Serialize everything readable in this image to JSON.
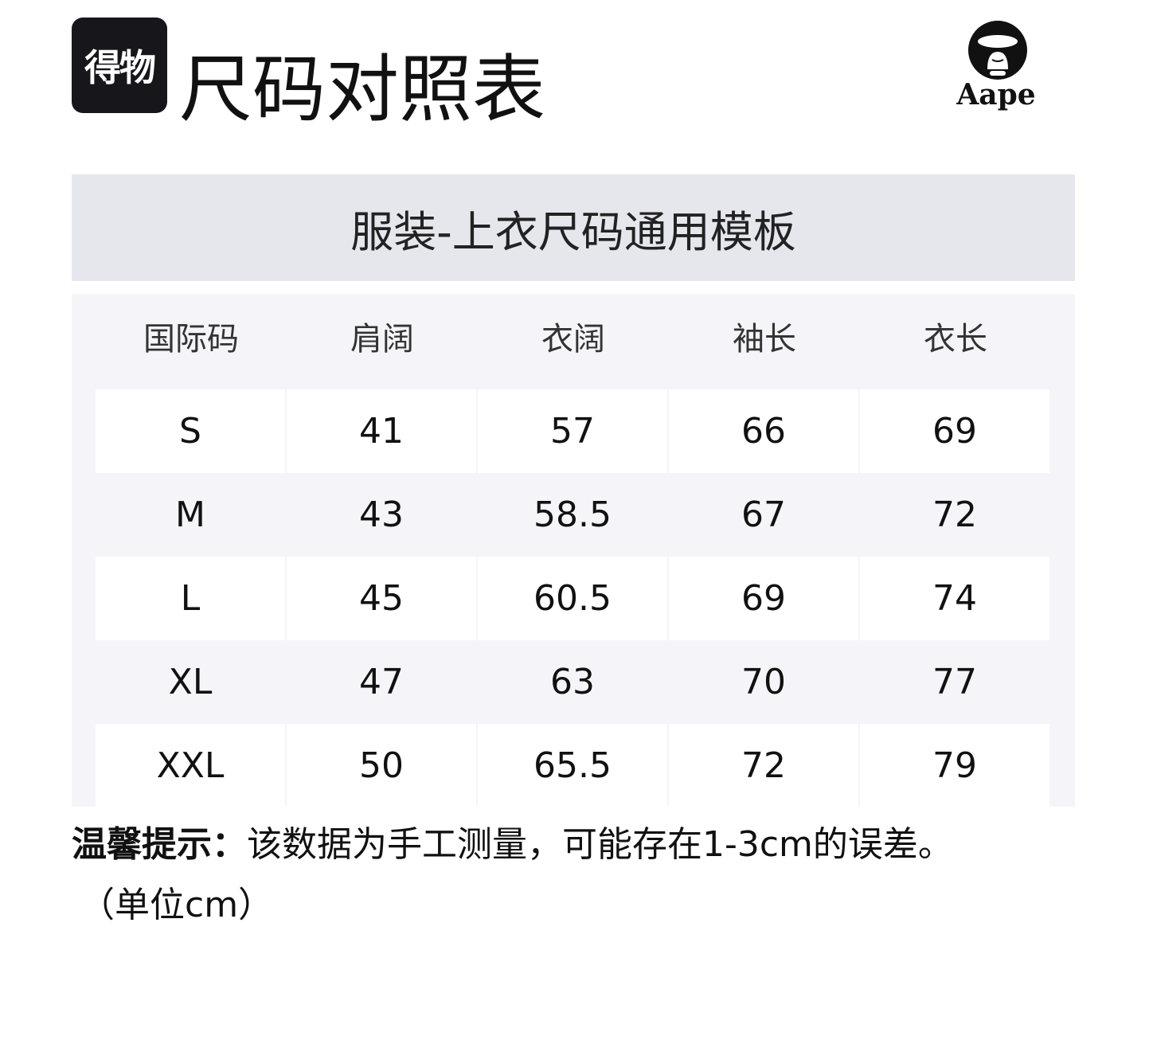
{
  "brand_logo": "得物",
  "title": "尺码对照表",
  "partner_logo": {
    "text": "Aape",
    "icon": "ape-head-logo"
  },
  "table": {
    "caption": "服装-上衣尺码通用模板",
    "headers": [
      "国际码",
      "肩阔",
      "衣阔",
      "袖长",
      "衣长"
    ],
    "rows": [
      [
        "S",
        "41",
        "57",
        "66",
        "69"
      ],
      [
        "M",
        "43",
        "58.5",
        "67",
        "72"
      ],
      [
        "L",
        "45",
        "60.5",
        "69",
        "74"
      ],
      [
        "XL",
        "47",
        "63",
        "70",
        "77"
      ],
      [
        "XXL",
        "50",
        "65.5",
        "72",
        "79"
      ]
    ]
  },
  "note": {
    "label": "温馨提示：",
    "text": "该数据为手工测量，可能存在1-3cm的误差。",
    "unit": "（单位cm）"
  }
}
